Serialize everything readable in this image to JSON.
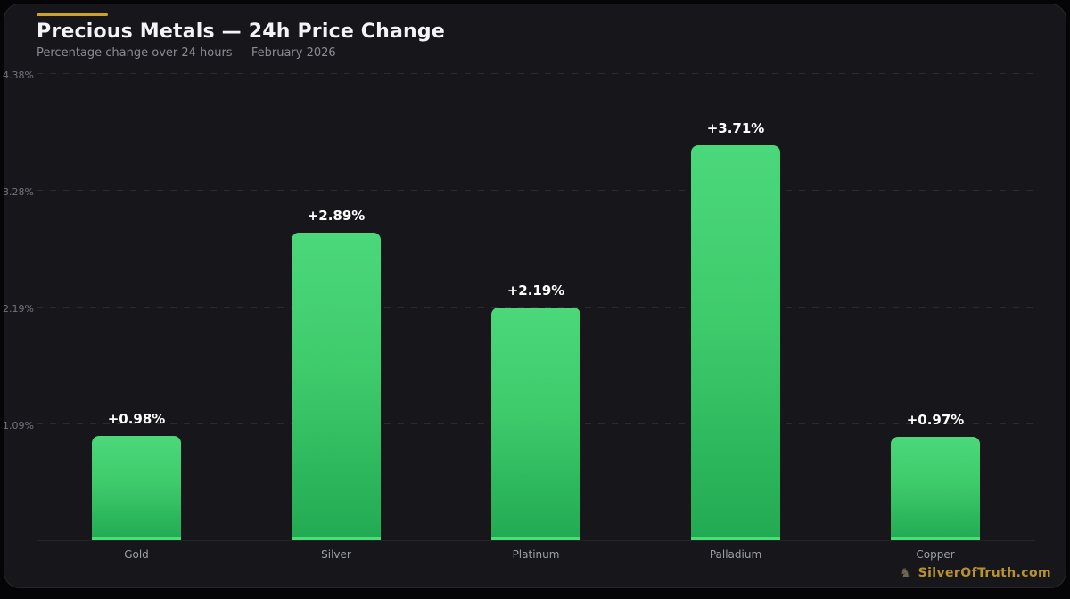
{
  "header": {
    "title": "Precious Metals — 24h Price Change",
    "subtitle": "Percentage change over 24 hours — February 2026"
  },
  "watermark": {
    "label": "SilverOfTruth.com",
    "icon": "crest-knight"
  },
  "colors": {
    "page_background": "#050507",
    "panel_background": "#16161b",
    "panel_border": "#26262c",
    "accent_gold": "#c9a227",
    "title_text": "#f4f4f6",
    "subtitle_text": "#8b8b93",
    "tick_text": "#73737b",
    "category_text": "#9ba0a6",
    "value_text": "#ffffff",
    "bar_gradient_top": "#4bd87b",
    "bar_gradient_bottom": "#22aa52",
    "bar_base_strip": "#48df79",
    "watermark_gold": "#b8922d"
  },
  "chart_data": {
    "type": "bar",
    "title": "Precious Metals — 24h Price Change",
    "subtitle": "Percentage change over 24 hours — February 2026",
    "categories": [
      "Gold",
      "Silver",
      "Platinum",
      "Palladium",
      "Copper"
    ],
    "values": [
      0.98,
      2.89,
      2.19,
      3.71,
      0.97
    ],
    "value_labels": [
      "+0.98%",
      "+2.89%",
      "+2.19%",
      "+3.71%",
      "+0.97%"
    ],
    "xlabel": "",
    "ylabel": "",
    "ylim": [
      0,
      4.38
    ],
    "yticks": [
      1.09,
      2.19,
      3.28,
      4.38
    ],
    "ytick_labels": [
      "1.09%",
      "2.19%",
      "3.28%",
      "4.38%"
    ],
    "grid": "horizontal-dashed",
    "legend": "none",
    "bar_color": "green-gradient"
  }
}
